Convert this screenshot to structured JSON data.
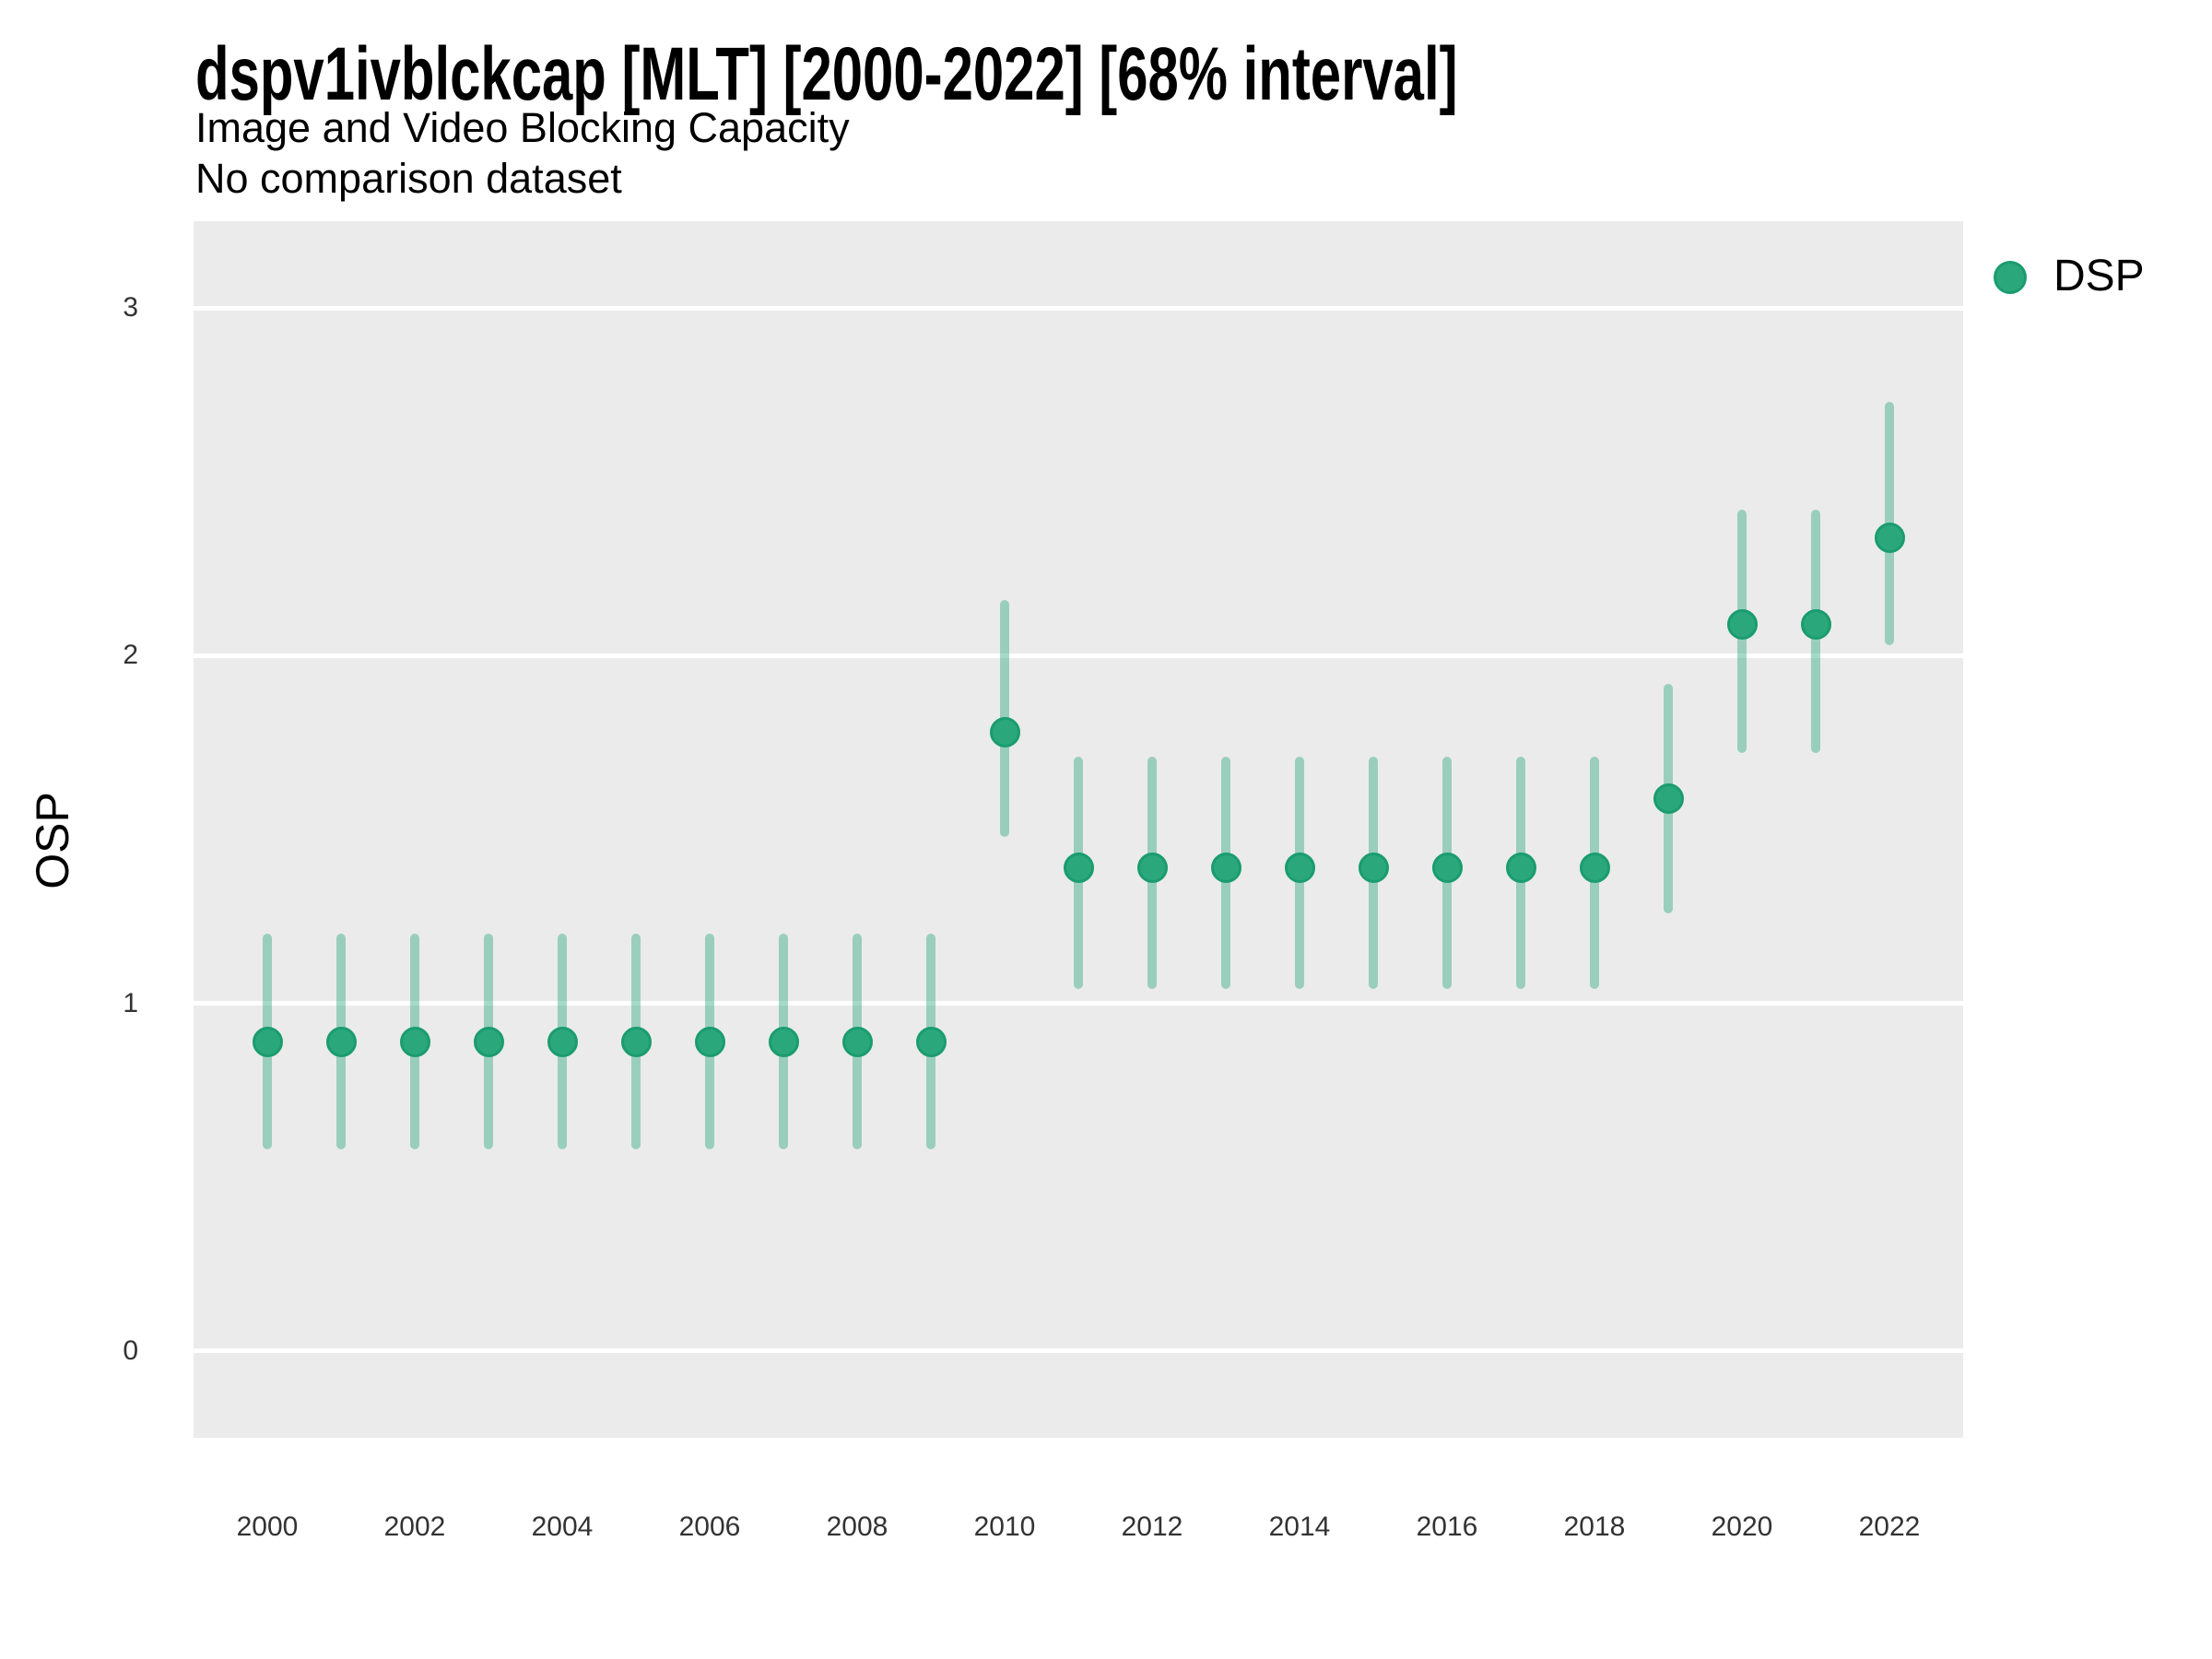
{
  "title": "dspv1ivblckcap [MLT] [2000-2022] [68% interval]",
  "subtitle_line1": "Image and Video Blocking Capacity",
  "subtitle_line2": "No comparison dataset",
  "y_axis": {
    "label": "OSP",
    "ticks": [
      0,
      1,
      2,
      3
    ]
  },
  "x_axis": {
    "ticks": [
      2000,
      2002,
      2004,
      2006,
      2008,
      2010,
      2012,
      2014,
      2016,
      2018,
      2020,
      2022
    ]
  },
  "legend": {
    "items": [
      {
        "label": "DSP",
        "marker": "circle-icon",
        "color": "#2aa87c"
      }
    ],
    "position": "right-top"
  },
  "colors": {
    "point_fill": "#2aa87c",
    "point_stroke": "#1b9c70",
    "interval": "rgba(42,168,124,0.42)",
    "panel_background": "#ebebeb",
    "gridline": "#ffffff",
    "tick_text": "#333333"
  },
  "chart_data": {
    "type": "scatter",
    "subtype": "point-interval",
    "title": "dspv1ivblckcap [MLT] [2000-2022] [68% interval]",
    "subtitle": "Image and Video Blocking Capacity",
    "note": "No comparison dataset",
    "xlabel": "",
    "ylabel": "OSP",
    "xlim": [
      1999,
      2023
    ],
    "ylim": [
      -0.25,
      3.25
    ],
    "grid": "horizontal-only",
    "interval_level": "68%",
    "series": [
      {
        "name": "DSP",
        "points": [
          {
            "year": 2000,
            "value": 0.89,
            "lo": 0.58,
            "hi": 1.2
          },
          {
            "year": 2001,
            "value": 0.89,
            "lo": 0.58,
            "hi": 1.2
          },
          {
            "year": 2002,
            "value": 0.89,
            "lo": 0.58,
            "hi": 1.2
          },
          {
            "year": 2003,
            "value": 0.89,
            "lo": 0.58,
            "hi": 1.2
          },
          {
            "year": 2004,
            "value": 0.89,
            "lo": 0.58,
            "hi": 1.2
          },
          {
            "year": 2005,
            "value": 0.89,
            "lo": 0.58,
            "hi": 1.2
          },
          {
            "year": 2006,
            "value": 0.89,
            "lo": 0.58,
            "hi": 1.2
          },
          {
            "year": 2007,
            "value": 0.89,
            "lo": 0.58,
            "hi": 1.2
          },
          {
            "year": 2008,
            "value": 0.89,
            "lo": 0.58,
            "hi": 1.2
          },
          {
            "year": 2009,
            "value": 0.89,
            "lo": 0.58,
            "hi": 1.2
          },
          {
            "year": 2010,
            "value": 1.78,
            "lo": 1.48,
            "hi": 2.16
          },
          {
            "year": 2011,
            "value": 1.39,
            "lo": 1.04,
            "hi": 1.71
          },
          {
            "year": 2012,
            "value": 1.39,
            "lo": 1.04,
            "hi": 1.71
          },
          {
            "year": 2013,
            "value": 1.39,
            "lo": 1.04,
            "hi": 1.71
          },
          {
            "year": 2014,
            "value": 1.39,
            "lo": 1.04,
            "hi": 1.71
          },
          {
            "year": 2015,
            "value": 1.39,
            "lo": 1.04,
            "hi": 1.71
          },
          {
            "year": 2016,
            "value": 1.39,
            "lo": 1.04,
            "hi": 1.71
          },
          {
            "year": 2017,
            "value": 1.39,
            "lo": 1.04,
            "hi": 1.71
          },
          {
            "year": 2018,
            "value": 1.39,
            "lo": 1.04,
            "hi": 1.71
          },
          {
            "year": 2019,
            "value": 1.59,
            "lo": 1.26,
            "hi": 1.92
          },
          {
            "year": 2020,
            "value": 2.09,
            "lo": 1.72,
            "hi": 2.42
          },
          {
            "year": 2021,
            "value": 2.09,
            "lo": 1.72,
            "hi": 2.42
          },
          {
            "year": 2022,
            "value": 2.34,
            "lo": 2.03,
            "hi": 2.73
          }
        ]
      }
    ]
  }
}
